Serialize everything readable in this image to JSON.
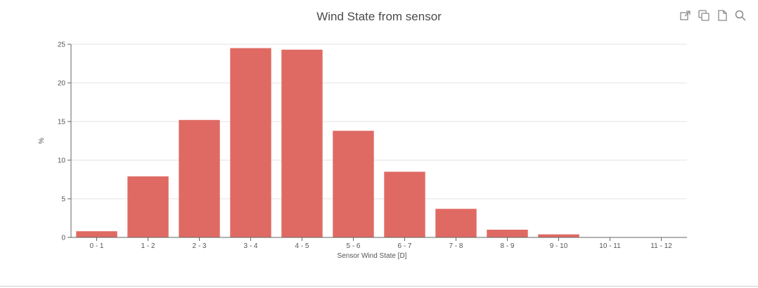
{
  "toolbar": [
    {
      "name": "export-icon",
      "label": "Export"
    },
    {
      "name": "copy-icon",
      "label": "Copy"
    },
    {
      "name": "document-icon",
      "label": "Document"
    },
    {
      "name": "search-icon",
      "label": "Zoom"
    }
  ],
  "chart_data": {
    "type": "bar",
    "title": "Wind State from sensor",
    "xlabel": "Sensor Wind State [D]",
    "ylabel": "%",
    "categories": [
      "0 - 1",
      "1 - 2",
      "2 - 3",
      "3 - 4",
      "4 - 5",
      "5 - 6",
      "6 - 7",
      "7 - 8",
      "8 - 9",
      "9 - 10",
      "10 - 11",
      "11 - 12"
    ],
    "values": [
      0.8,
      7.9,
      15.2,
      24.5,
      24.3,
      13.8,
      8.5,
      3.7,
      1.0,
      0.4,
      0,
      0
    ],
    "yticks": [
      0,
      5,
      10,
      15,
      20,
      25
    ],
    "ylim": [
      0,
      25
    ],
    "grid": true,
    "bar_color": "#df6a63"
  }
}
